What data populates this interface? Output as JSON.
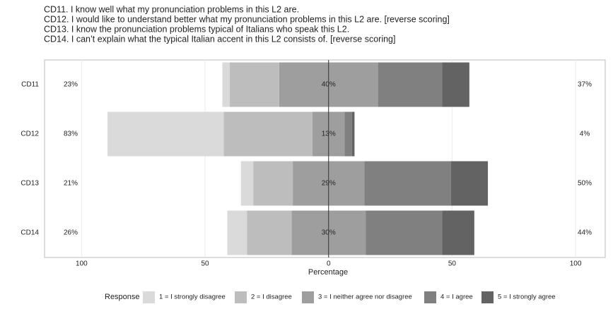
{
  "chart_data": {
    "type": "diverging_bar",
    "title_lines": [
      "CD11. I know well what my pronunciation problems in this L2 are.",
      "CD12. I would like to understand better what my pronunciation problems in this L2 are. [reverse scoring]",
      "CD13. I know the pronunciation problems typical of Italians who speak this L2.",
      "CD14. I can’t explain what the typical Italian accent in this L2 consists of. [reverse scoring]"
    ],
    "categories": [
      "CD11",
      "CD12",
      "CD13",
      "CD14"
    ],
    "series": [
      {
        "name": "1 = I strongly disagree",
        "color": "#dadada",
        "side": "left",
        "values": [
          3,
          47,
          5,
          8
        ]
      },
      {
        "name": "2 = I disagree",
        "color": "#bdbdbd",
        "side": "left",
        "values": [
          20,
          36,
          16,
          18
        ]
      },
      {
        "name": "3 = I neither agree nor disagree",
        "color": "#9e9e9e",
        "side": "center",
        "values": [
          40,
          13,
          29,
          30
        ],
        "value_labels": [
          "40%",
          "13%",
          "29%",
          "30%"
        ]
      },
      {
        "name": "4 = I agree",
        "color": "#808080",
        "side": "right",
        "values": [
          26,
          3,
          35,
          31
        ]
      },
      {
        "name": "5 = I strongly agree",
        "color": "#636363",
        "side": "right",
        "values": [
          11,
          1,
          15,
          13
        ]
      }
    ],
    "left_totals": [
      "23%",
      "83%",
      "21%",
      "26%"
    ],
    "right_totals": [
      "37%",
      "4%",
      "50%",
      "44%"
    ],
    "xlabel": "Percentage",
    "legend_title": "Response",
    "xlim": [
      -115,
      112
    ],
    "xticks": [
      {
        "value": -100,
        "label": "100"
      },
      {
        "value": -50,
        "label": "50"
      },
      0,
      50,
      100
    ],
    "grid": true
  }
}
